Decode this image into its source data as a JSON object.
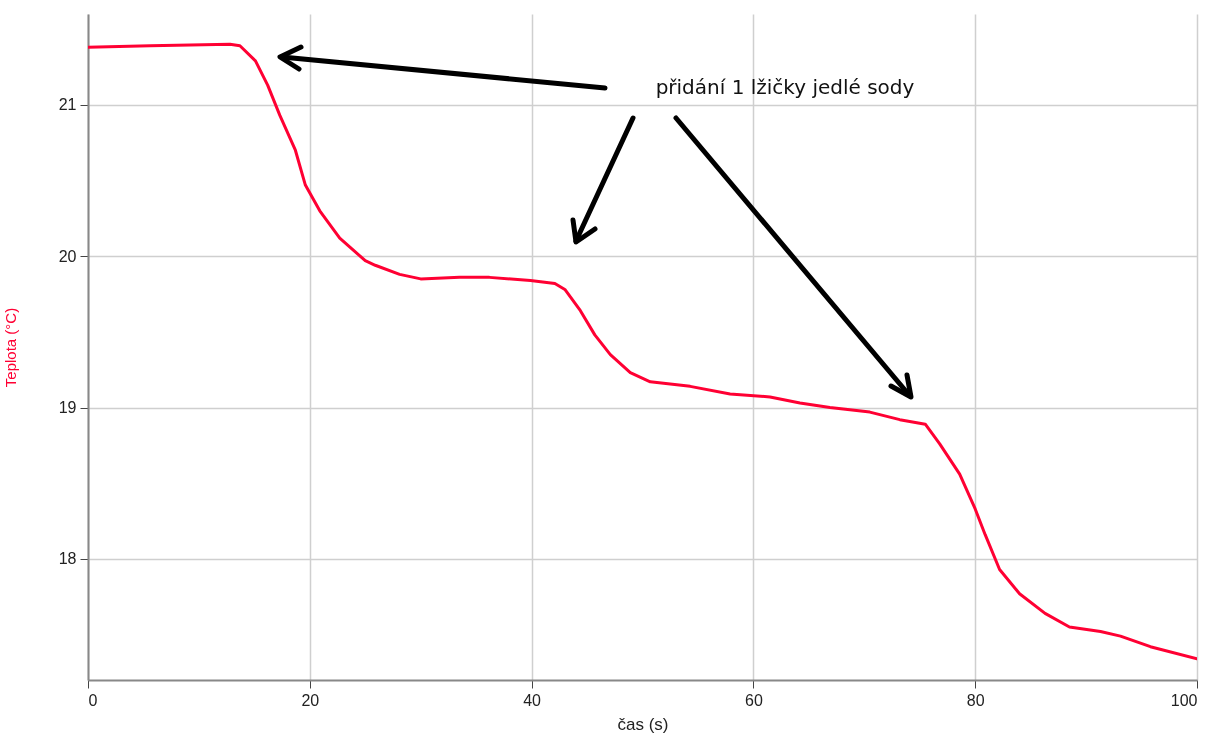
{
  "chart_data": {
    "type": "line",
    "xlabel": "čas (s)",
    "ylabel": "Teplota (°C)",
    "xlim": [
      0,
      100
    ],
    "xticks": [
      0,
      20,
      40,
      60,
      80,
      100
    ],
    "ylim": [
      17.2,
      21.6
    ],
    "yticks": [
      18,
      19,
      20,
      21
    ],
    "grid": true,
    "annotations": [
      "přidání 1 lžičky jedlé sody"
    ],
    "series": [
      {
        "color": "#ff0033",
        "x": [
          0,
          5.6,
          12.8,
          13.7,
          15.1,
          16.2,
          17.3,
          18.7,
          19.6,
          20.9,
          22.7,
          25,
          25.9,
          28.1,
          30,
          33.5,
          36.2,
          39.9,
          42.1,
          43,
          44.4,
          45.7,
          47.1,
          48.9,
          50.7,
          54.3,
          57.9,
          61.5,
          64.2,
          66.9,
          70.5,
          73.2,
          75.5,
          76.8,
          78.6,
          80,
          80.9,
          82.2,
          84,
          86.3,
          88.5,
          91.3,
          93.1,
          95.8,
          100
        ],
        "values": [
          21.38,
          21.39,
          21.4,
          21.39,
          21.29,
          21.13,
          20.93,
          20.7,
          20.47,
          20.3,
          20.12,
          19.97,
          19.94,
          19.88,
          19.85,
          19.86,
          19.86,
          19.84,
          19.82,
          19.78,
          19.64,
          19.48,
          19.35,
          19.23,
          19.17,
          19.14,
          19.09,
          19.07,
          19.03,
          19,
          18.97,
          18.92,
          18.89,
          18.76,
          18.56,
          18.33,
          18.16,
          17.93,
          17.77,
          17.64,
          17.55,
          17.52,
          17.49,
          17.42,
          17.34
        ]
      }
    ]
  }
}
